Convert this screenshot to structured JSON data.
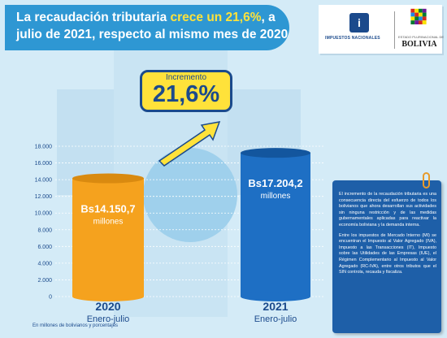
{
  "headline": {
    "part1": "La recaudación tributaria ",
    "highlight": "crece un 21,6%",
    "part2": ", a",
    "line2": "julio de 2021, respecto al mismo mes de 2020"
  },
  "logos": {
    "sin_text": "IMPUESTOS NACIONALES",
    "bolivia_small": "ESTADO PLURINACIONAL DE",
    "bolivia_name": "BOLIVIA"
  },
  "increment": {
    "label": "Incremento",
    "value": "21,6%"
  },
  "units_note": "En millones de bolivianos y porcentajes",
  "info": {
    "paragraph1": "El incremento de la recaudación tributaria es una consecuencia directa del esfuerzo de todos los bolivianos que ahora desarrollan sus actividades sin ninguna restricción y de las medidas gubernamentales aplicadas para reactivar la economía boliviana y la demanda interna.",
    "paragraph2": "Entre los impuestos de Mercado Interno (MI) se encuentran el Impuesto al Valor Agregado (IVA), Impuesto a las Transacciones (IT), Impuesto sobre las Utilidades de las Empresas (IUE), el Régimen Complementario al Impuesto al Valor Agregado (RC-IVA), entre otros tributos que el SIN controla, recauda y fiscaliza."
  },
  "colors": {
    "bar_2020": "#f5a21e",
    "bar_2021": "#1e6fc4",
    "header": "#2e97d3",
    "accent": "#ffe23a",
    "info_box": "#1e5fa8"
  },
  "chart_data": {
    "type": "bar",
    "categories": [
      "2020",
      "2021"
    ],
    "category_sublabels": [
      "Enero-julio",
      "Enero-julio"
    ],
    "values": [
      14150.7,
      17204.2
    ],
    "value_labels": [
      "Bs14.150,7",
      "Bs17.204,2"
    ],
    "value_unit": "millones",
    "ylim": [
      0,
      18000
    ],
    "yticks": [
      0,
      2000,
      4000,
      6000,
      8000,
      10000,
      12000,
      14000,
      16000,
      18000
    ],
    "ytick_labels": [
      "0",
      "2.000",
      "4.000",
      "6.000",
      "8.000",
      "10.000",
      "12.000",
      "14.000",
      "16.000",
      "18.000"
    ],
    "grid": true
  }
}
